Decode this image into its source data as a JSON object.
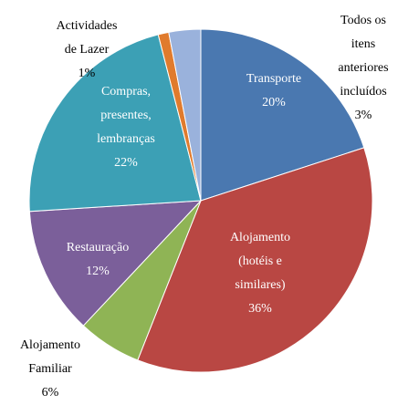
{
  "chart_data": {
    "type": "pie",
    "categories": [
      "Transporte",
      "Alojamento (hotéis e similares)",
      "Alojamento Familiar",
      "Restauração",
      "Compras, presentes, lembranças",
      "Actividades de Lazer",
      "Todos os itens anteriores incluídos"
    ],
    "values": [
      20,
      36,
      6,
      12,
      22,
      1,
      3
    ],
    "value_labels": [
      "20%",
      "36%",
      "6%",
      "12%",
      "22%",
      "1%",
      "3%"
    ],
    "colors": [
      "#4a78b0",
      "#b94743",
      "#8fb455",
      "#7b5f9a",
      "#3ca0b5",
      "#e07b2d",
      "#9ab2dc"
    ]
  }
}
